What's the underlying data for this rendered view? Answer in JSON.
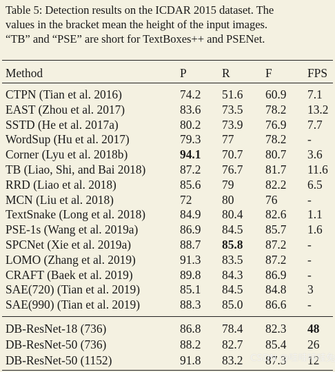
{
  "caption": {
    "lines": [
      "Table 5: Detection results on the ICDAR 2015 dataset. The",
      "values in the bracket mean the height of the input images.",
      "“TB” and “PSE” are short for TextBoxes++ and PSENet."
    ]
  },
  "table": {
    "headers": [
      "Method",
      "P",
      "R",
      "F",
      "FPS"
    ],
    "group1": [
      {
        "method": "CTPN (Tian et al. 2016)",
        "p": "74.2",
        "r": "51.6",
        "f": "60.9",
        "fps": "7.1"
      },
      {
        "method": "EAST (Zhou et al. 2017)",
        "p": "83.6",
        "r": "73.5",
        "f": "78.2",
        "fps": "13.2"
      },
      {
        "method": "SSTD (He et al. 2017a)",
        "p": "80.2",
        "r": "73.9",
        "f": "76.9",
        "fps": "7.7"
      },
      {
        "method": "WordSup (Hu et al. 2017)",
        "p": "79.3",
        "r": "77",
        "f": "78.2",
        "fps": "-"
      },
      {
        "method": "Corner (Lyu et al. 2018b)",
        "p": "94.1",
        "r": "70.7",
        "f": "80.7",
        "fps": "3.6"
      },
      {
        "method": "TB (Liao, Shi, and Bai 2018)",
        "p": "87.2",
        "r": "76.7",
        "f": "81.7",
        "fps": "11.6"
      },
      {
        "method": "RRD (Liao et al. 2018)",
        "p": "85.6",
        "r": "79",
        "f": "82.2",
        "fps": "6.5"
      },
      {
        "method": "MCN (Liu et al. 2018)",
        "p": "72",
        "r": "80",
        "f": "76",
        "fps": "-"
      },
      {
        "method": "TextSnake (Long et al. 2018)",
        "p": "84.9",
        "r": "80.4",
        "f": "82.6",
        "fps": "1.1"
      },
      {
        "method": "PSE-1s (Wang et al. 2019a)",
        "p": "86.9",
        "r": "84.5",
        "f": "85.7",
        "fps": "1.6"
      },
      {
        "method": "SPCNet (Xie et al. 2019a)",
        "p": "88.7",
        "r": "85.8",
        "f": "87.2",
        "fps": "-"
      },
      {
        "method": "LOMO (Zhang et al. 2019)",
        "p": "91.3",
        "r": "83.5",
        "f": "87.2",
        "fps": "-"
      },
      {
        "method": "CRAFT (Baek et al. 2019)",
        "p": "89.8",
        "r": "84.3",
        "f": "86.9",
        "fps": "-"
      },
      {
        "method": "SAE(720) (Tian et al. 2019)",
        "p": "85.1",
        "r": "84.5",
        "f": "84.8",
        "fps": "3"
      },
      {
        "method": "SAE(990) (Tian et al. 2019)",
        "p": "88.3",
        "r": "85.0",
        "f": "86.6",
        "fps": "-"
      }
    ],
    "group2": [
      {
        "method": "DB-ResNet-18 (736)",
        "p": "86.8",
        "r": "78.4",
        "f": "82.3",
        "fps": "48"
      },
      {
        "method": "DB-ResNet-50 (736)",
        "p": "88.2",
        "r": "82.7",
        "f": "85.4",
        "fps": "26"
      },
      {
        "method": "DB-ResNet-50 (1152)",
        "p": "91.8",
        "r": "83.2",
        "f": "87.3",
        "fps": "12"
      }
    ],
    "bold_cells": [
      "group1.4.p",
      "group1.10.r",
      "group2.0.fps"
    ]
  },
  "watermark": "CSDN @哇哇哇哇兔"
}
